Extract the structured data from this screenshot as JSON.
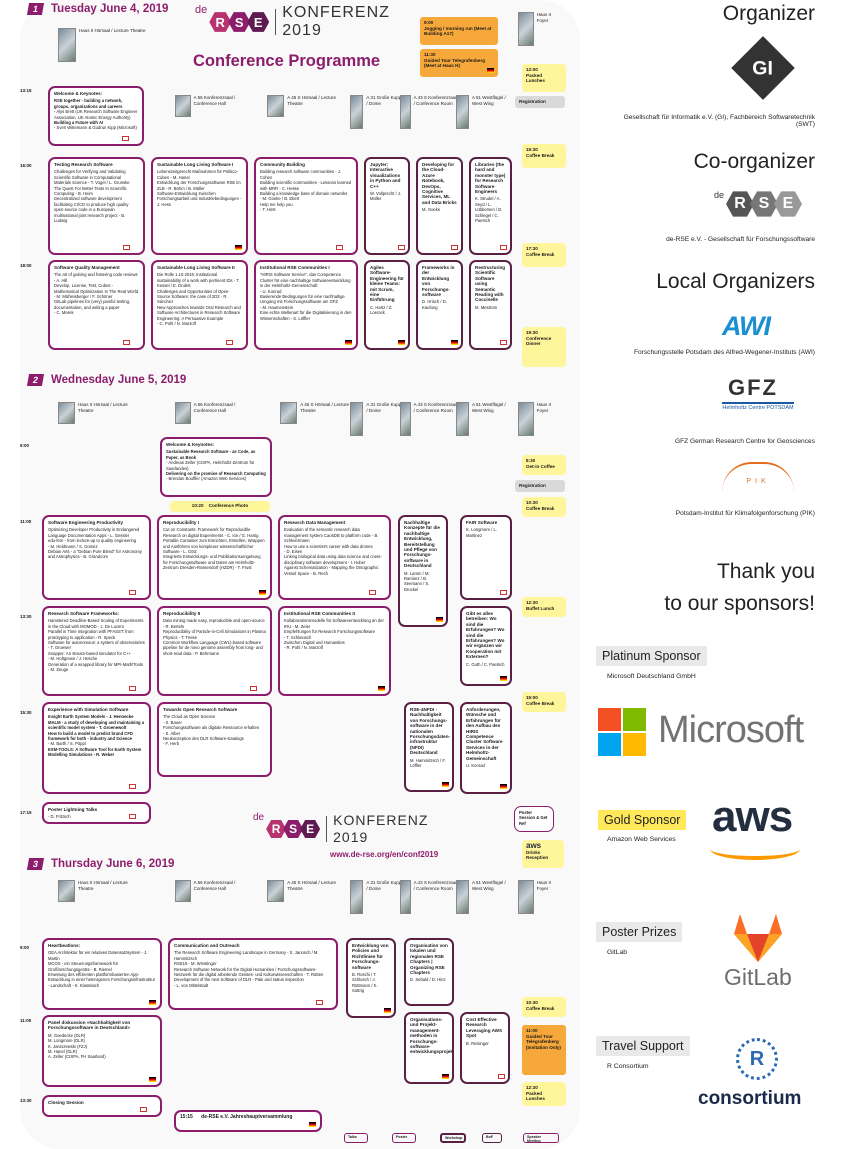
{
  "header": {
    "day1": {
      "num": "1",
      "label": "Tuesday June 4, 2019"
    },
    "day2": {
      "num": "2",
      "label": "Wednesday June 5, 2019"
    },
    "day3": {
      "num": "3",
      "label": "Thursday June 6, 2019"
    },
    "logo_de": "de",
    "logo_letters": [
      "R",
      "S",
      "E"
    ],
    "konferenz": "KONFERENZ",
    "year": "2019",
    "programme": "Conference Programme",
    "url": "www.de-rse.org/en/conf2019"
  },
  "rooms": {
    "haus2": "Haus II Hörsaal / Lecture Theatre",
    "a56": "A 56 Konferenzsaal / Conference Hall",
    "a45s": "A 45 S Hörsaal / Lecture Theatre",
    "a31": "A 31 Große Kuppel / Dome",
    "a43s": "A 43 S Konferenzraum / Conference Room",
    "a51": "A 51 Westflügel / West Wing",
    "haus2foyer": "Haus II Foyer"
  },
  "day1": {
    "times": [
      "13:15",
      "16:00",
      "18:00"
    ],
    "yellow_top": [
      {
        "time": "9:00",
        "text": "Jogging / morning run (Meet at Building A17)"
      },
      {
        "time": "11:30",
        "text": "Guided Tour Telegrafenberg (Meet at Haus H)"
      }
    ],
    "right": [
      {
        "time": "12:00",
        "text": "Packed Lunches"
      },
      {
        "text": "Registration"
      },
      {
        "time": "15:30",
        "text": "Coffee Break"
      },
      {
        "time": "17:30",
        "text": "Coffee Break"
      },
      {
        "time": "19:30",
        "text": "Conference Dinner"
      }
    ],
    "s_welcome": {
      "title": "Welcome & Keynotes:",
      "lines": [
        "RSE together - building a network, groups, organizations and careers",
        "- Alys Brett (UK Research Software Engineer Association, UK Atomic Energy Authority)",
        "Building a Future with AI",
        "- Sven Wittemann & Gudrun Kipp (Microsoft)"
      ]
    },
    "s1a": {
      "title": "Testing Research Software",
      "lines": [
        "Challenges for Verifying and Validating Scientific Software in Computational Materials Science - T. Vogel / L. Grunske",
        "The Quest For Better Tests In Scientific Computing - B. Heim",
        "Decentralized software development facilitating CI/CD to produce high quality open-source code in a European multinational joint research project - B. Ludwig"
      ]
    },
    "s1b": {
      "title": "Sustainable Long Living Software I",
      "lines": [
        "Lebenszeitgerecht Maßnahmen für Politico-Cubes - M. Hanel",
        "Entwicklung der Forschungssoftware RSE im ZLB - R. Böhm / B. Müller",
        "Software-Entwicklung zwischen Forschungsarbeit und Industriebedingungen - J. Hess"
      ]
    },
    "s1c": {
      "title": "Community Building",
      "lines": [
        "Building research software communities - J. Cohen",
        "Building scientific communities - Lessons learned with MRR - C. Hesse",
        "Building a knowledge base of domain networks",
        "- M. Goeke / B. Ebert",
        "Help me help you",
        "- T. Hirst"
      ]
    },
    "s1d": {
      "title": "Jupyter: Interactive visualizations in Python and C++",
      "lines": [
        "W. Vollprecht / J. Müller"
      ]
    },
    "s1e": {
      "title": "Developing for the Cloud-Azure Notebook, DevOps, Cognitive Services, ML and Data Bricks",
      "lines": [
        "M. Goeke"
      ]
    },
    "s1f": {
      "title": "Libraries (the hard and monster type) for Research Software Engineers",
      "lines": [
        "K. Strudel / A. Seyd / L. Lübbersen / B. Schlegel / C. Paetsch"
      ]
    },
    "s2a": {
      "title": "Software Quality Management",
      "lines": [
        "The art of gaining and fostering code reviews - A. Hill",
        "Develop, License, Test, Cubes - Mathematical Optimization In The Real World",
        "- M. Mühleisberger / F. Schöner",
        "GitLab pipelines for (very) painful testing, documentation, and writing a paper",
        "- C. Marek"
      ]
    },
    "s2b": {
      "title": "Sustainable Long Living Software II",
      "lines": [
        "Die Rolle 1.10.2016: Institutional sustainability of a work with pertinent IDs - T. Kessel / E. Drubst",
        "Challenges and Opportunities of Open-Source Software: the case of 2D2 - R. Sánchez",
        "New Approaches towards Oral Research and Software Architectures in Research Software Engineering: A Persuasive Example",
        "- C. Pohl / N. Marzolf"
      ]
    },
    "s2c": {
      "title": "Institutional RSE Communities I",
      "lines": [
        "\"HIRIS Software Service\", das Competence Cluster für eine nachhaltige Softwareentwicklung in der Helmholtz-Gemeinschaft",
        "- U. Konrad",
        "Basierende Bedingungen für eine nachhaltige Umgang mit Forschungssoftware am GFZ",
        "- M. Haumenstein",
        "Eine echte Wellenart für die Digitalisierung in den Wissenschaften - S. Löffler"
      ]
    },
    "s2d": {
      "title": "Agiles Software-Engineering für kleine Teams: mit Scrum, eine Einführung",
      "lines": [
        "C. Hartz / Z. Loerack"
      ]
    },
    "s2e": {
      "title": "Frameworks in der Entwicklung von Forschungs-software",
      "lines": [
        "D. Hrisch / D. Kaufung"
      ]
    },
    "s2f": {
      "title": "Restructuring Scientific Software using Semantic Reading with Coccinelle",
      "lines": [
        "M. Mestrom"
      ]
    }
  },
  "day2": {
    "times": [
      "9:00",
      "11:00",
      "13:30",
      "15:30",
      "17:15"
    ],
    "right": [
      {
        "time": "8:30",
        "text": "Get-in Coffee"
      },
      {
        "text": "Registration"
      },
      {
        "time": "10:30",
        "text": "Coffee Break"
      },
      {
        "time": "12:30",
        "text": "Buffet Lunch"
      },
      {
        "time": "15:00",
        "text": "Coffee Break"
      },
      {
        "time": "",
        "text": "Poster Session & Get Ref"
      },
      {
        "time": "",
        "text": "Drinks Reception"
      }
    ],
    "s_welcome": {
      "title": "Welcome & Keynotes:",
      "lines": [
        "Sustainable Research Software - as Code, as Paper, as Book",
        "- Andreas Zeller (CISPA, Helmholtz-Zentrum für Saarlandes)",
        "Delivering on the promise of Research Computing",
        "- Brendan Bouffler (Amazon Web Services)"
      ]
    },
    "photo": {
      "time": "10:20",
      "text": "Conference Photo"
    },
    "s1a": {
      "title": "Software Engineering Productivity",
      "lines": [
        "Optimizing Developer Productivity in Endangered Language Documentation Apps - L. Gessler",
        "edu-fem - from lecture-up to quality engineering",
        "- M. Heldmann / S. Gomez",
        "Debian Arts - a \"Debian Pure Blend\" for Astronomy and Astrophysics - B. Grandcom"
      ]
    },
    "s1b": {
      "title": "Reproducibility I",
      "lines": [
        "Cut on Constants: Framework for Reproducible Research on digital Experiments - C. Ion / G. Hartig",
        "Portable Container zum Einrichten, Erstellen, Wrappen und Ausführen von komplexer wissenschaftlicher Software - L. Götz",
        "Integrierte Entwicklungs- und Publikationsumgebung für Forschungssoftware und Daten am Helmholtz-Zentrum Dresden-Rossendorf (HZDR) - T. Frust"
      ]
    },
    "s1c": {
      "title": "Research Data Management",
      "lines": [
        "Evaluation of the semantic research data management system CaosDB to platform code - B. Schleiermann",
        "How to use a scientist's career with data drones",
        "- D. Eisen",
        "Linking biological data using data science and cross-disciplinary software development - I. Huber",
        "Against Schematization - Mapping the Ontographic Vessel Space - B. Rech"
      ]
    },
    "s1d": {
      "title": "Nachhaltige Konzepte für die nachhaltige Entwicklung, Bereitstellung und Pflege von Forschungs-software in Deutschland",
      "lines": [
        "M. Lamm / M. Ramirez / B. Seemann / S. Druckel"
      ]
    },
    "s1e": {
      "title": "FAIR Software",
      "lines": [
        "K. Longmore / L. Martinez"
      ]
    },
    "s2a": {
      "title": "Research Software Frameworks:",
      "lines": [
        "Hamstered Deadline-Based Scaling of Experiments in the Cloud with MOMOD - J. De Lucero",
        "Parallel in Time Integration with PFASST: from prototyping to application - R. Speck",
        "Software for autonomous: a system of observatories - T. Gruewer",
        "Snapper: An stream-based simulator for C++",
        "- M. Holtgrewe / J. Hüsche",
        "Generation of a wrapped library for MPI-Math/Tools - M. Zeuge"
      ]
    },
    "s2b": {
      "title": "Reproducibility II",
      "lines": [
        "Data mining made easy, reproducible and open-source - R. Bertels",
        "Reproducibility of Particle-in-Cell Simulations in Plasma Physics - T. Treise",
        "Common Workflow Language (CWL)-based software pipeline for de novo genome assembly from long- and short-read data - P. Behrmann"
      ]
    },
    "s2c": {
      "title": "Institutional RSE Communities II",
      "lines": [
        "Kollaborationsmodelle für Softwareentwicklung an der IRU - M. Zeier",
        "Empfehlungen für Research Forschungssoftware",
        "- T. Schlutusch",
        "Zwischen Digital und Humanities",
        "- R. Pohl / N. Marzolf"
      ]
    },
    "s2d": {
      "title": "Gibt es alles betreiben: Wo sind die Erfahrungen? Wo sind die Erfahrungen? Wo wir ergänzen wir Kooperation mit Externen?",
      "lines": [
        "C. Guth / C. Paetsch"
      ]
    },
    "s3a": {
      "title": "Experience with Simulation Software",
      "lines": [
        "Insight Earth System Models - J. Hennecke",
        "MALM - a study of developing and maintaining a scientific model system - T. Groenewolt",
        "How to build a model to predict brand CFD framework for both - industry and Science",
        "- M. Barth / S. Pöppl",
        "ESM-TOOLS: A Software Tool for Earth System Modelling Simulations - R. Weber"
      ]
    },
    "s3b": {
      "title": "Towards Open Research Software",
      "lines": [
        "The Cloud as Open Science",
        "- S. Bauer",
        "Forschungssoftware als digitale Ressource erhalten",
        "- S. Alber",
        "Neukonzeption des DLR Software-Katalogs",
        "- F. Herb"
      ]
    },
    "s3c": {
      "title": "RSE-4NFDI - Nachhaltigkeit von Forschungs-software in der nationalen Forschungsdaten-infrastruktur (NFDI) Deutschland",
      "lines": [
        "M. Hammitzsch / F. Löffler"
      ]
    },
    "s3d": {
      "title": "Anforderungen, Wünsche und Erfahrungen für den Aufbau des HIRIS Competence Cluster Software Services in der Helmholtz-Gemeinschaft",
      "lines": [
        "U. Konrad"
      ]
    },
    "s4a": {
      "title": "Poster Lightning Talks",
      "lines": [
        "- D. Fritzsch"
      ]
    }
  },
  "day3": {
    "times": [
      "9:00",
      "11:00",
      "13:30"
    ],
    "right": [
      {
        "time": "10:30",
        "text": "Coffee Break"
      },
      {
        "time": "11:00",
        "text": "Guided Tour Telegrafenberg (Invitation Only)"
      },
      {
        "time": "12:30",
        "text": "Packed Lunches"
      }
    ],
    "s1a": {
      "title": "Heartbeatlons:",
      "lines": [
        "GEA Architektur für ein relatives Datensatzsystem - J. Martin",
        "MCOS - ein Steuerungsframework für Großforschungsgeräte - B. Riemel",
        "Erweitung des effizienten plattformbasierten App-Entwicklung in einer heterogenen Forschungsinfrastruktur - Landschaft - K. Klassdach"
      ]
    },
    "s1b": {
      "title": "Communication and Outreach",
      "lines": [
        "The Research Software Engineering Landscape in Germany - S. Janosch / M. Hammitzsch",
        "RSE19 - M. Winstinger",
        "Research Software Network for the Digital Humanities / Forschungssoftware-Netzwerk für die digital arbeitende Geistes- und Kulturwissenschaften - T. Rütten",
        "Development of the next Software of DLR - Pale and status inspection",
        "- L. von Mittelstadt"
      ]
    },
    "s1c": {
      "title": "Entwicklung von Policies und Richtlinien für Forschungs-software",
      "lines": [
        "B. Roschi / T. Schlusch / J. Rüttmann / K. Sottrig"
      ]
    },
    "s1d": {
      "title": "Organisation von lokalen und regionalen RSE Chapters | Organizing RSE Chapters",
      "lines": [
        "D. Sebald / D. Hinz"
      ]
    },
    "s2a": {
      "title": "Panel diskussion «Nachhaltigkeit von Forschungssoftware in Deutschland»",
      "lines": [
        "M. Goedecke (DLR)",
        "M. Longmore (DLR)",
        "K. Jaroszewski (FZJ)",
        "M. Hanel (DLR)",
        "A. Zeller (CISPA, FH Saarland)"
      ]
    },
    "s2b": {
      "title": "Organisations-und Projekt-management-methoden in Forschungs-software-entwicklungsprojekten",
      "lines": []
    },
    "s2c": {
      "title": "Cost Effective Research Leveraging AWS Spot",
      "lines": [
        "B. Reisinger"
      ]
    },
    "s3a": {
      "title": "Closing Session",
      "lines": []
    },
    "s3b": {
      "time": "15:15",
      "text": "de-RSE e.V. Jahreshauptversammlung"
    }
  },
  "legend": [
    "Talks",
    "Poster",
    "Workshop",
    "BoF",
    "Speaker Meeting"
  ],
  "sidebar": {
    "organizer_title": "Organizer",
    "organizer_logo": "GI",
    "organizer_name": "Gesellschaft für Informatik e.V. (GI), Fachbereich Softwaretechnik (SWT)",
    "coorg_title": "Co-organizer",
    "coorg_name": "de-RSE e.V. - Gesellschaft für Forschungssoftware",
    "local_title": "Local Organizers",
    "awi_logo": "AWI",
    "awi_name": "Forschungsstelle Potsdam des Alfred-Wegener-Instituts (AWI)",
    "gfz_logo": "GFZ",
    "gfz_sub": "Helmholtz Centre POTSDAM",
    "gfz_name": "GFZ German Research Centre for Geosciences",
    "pik_logo": "PIK",
    "pik_name": "Potsdam-Institut für Klimafolgenforschung (PIK)",
    "thanks1": "Thank you",
    "thanks2": "to our sponsors!",
    "platinum_label": "Platinum Sponsor",
    "platinum_name": "Microsoft Deutschland GmbH",
    "microsoft_logo": "Microsoft",
    "gold_label": "Gold Sponsor",
    "gold_name": "Amazon Web Services",
    "aws_logo": "aws",
    "poster_label": "Poster Prizes",
    "poster_name": "GitLab",
    "gitlab_logo": "GitLab",
    "travel_label": "Travel Support",
    "travel_name": "R Consortium",
    "rcons_logo": "consortium",
    "rcons_letter": "R"
  },
  "colors": {
    "primary": "#8c1d6c",
    "accent": "#fff59a",
    "orange": "#f7a83a"
  }
}
